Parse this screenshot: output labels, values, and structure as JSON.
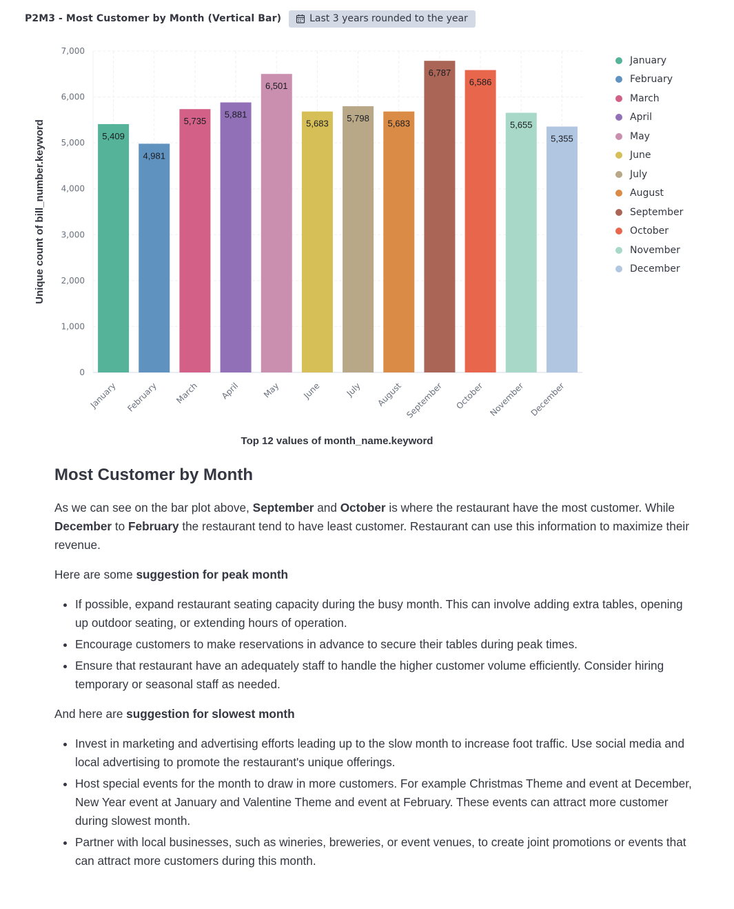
{
  "panel": {
    "title": "P2M3 - Most Customer by Month (Vertical Bar)",
    "time_badge": "Last 3 years rounded to the year"
  },
  "icons": {
    "time_badge_icon": "calendar-icon"
  },
  "chart_data": {
    "type": "bar",
    "categories": [
      "January",
      "February",
      "March",
      "April",
      "May",
      "June",
      "July",
      "August",
      "September",
      "October",
      "November",
      "December"
    ],
    "values": [
      5409,
      4981,
      5735,
      5881,
      6501,
      5683,
      5798,
      5683,
      6787,
      6586,
      5655,
      5355
    ],
    "value_labels": [
      "5,409",
      "4,981",
      "5,735",
      "5,881",
      "6,501",
      "5,683",
      "5,798",
      "5,683",
      "6,787",
      "6,586",
      "5,655",
      "5,355"
    ],
    "colors": [
      "#54b399",
      "#6092c0",
      "#d36086",
      "#9170b8",
      "#ca8eae",
      "#d6bf57",
      "#b9a888",
      "#da8b45",
      "#aa6556",
      "#e7664c",
      "#a8d8c8",
      "#b1c6e0"
    ],
    "xlabel": "Top 12 values of month_name.keyword",
    "ylabel": "Unique count of bill_number.keyword",
    "ylim": [
      0,
      7000
    ],
    "yticks": [
      0,
      1000,
      2000,
      3000,
      4000,
      5000,
      6000,
      7000
    ],
    "ytick_labels": [
      "0",
      "1,000",
      "2,000",
      "3,000",
      "4,000",
      "5,000",
      "6,000",
      "7,000"
    ],
    "grid": true,
    "legend": {
      "placement": "right",
      "entries": [
        "January",
        "February",
        "March",
        "April",
        "May",
        "June",
        "July",
        "August",
        "September",
        "October",
        "November",
        "December"
      ]
    }
  },
  "markdown": {
    "heading": "Most Customer by Month",
    "p1": {
      "t1": "As we can see on the bar plot above, ",
      "b1": "September",
      "t2": " and ",
      "b2": "October",
      "t3": " is where the restaurant have the most customer. While ",
      "b3": "December",
      "t4": " to ",
      "b4": "February",
      "t5": " the restaurant tend to have least customer. Restaurant can use this information to maximize their revenue."
    },
    "p2": {
      "t1": "Here are some ",
      "b1": "suggestion for peak month"
    },
    "peak_list": [
      "If possible, expand restaurant seating capacity during the busy month. This can involve adding extra tables, opening up outdoor seating, or extending hours of operation.",
      "Encourage customers to make reservations in advance to secure their tables during peak times.",
      "Ensure that restaurant have an adequately staff to handle the higher customer volume efficiently. Consider hiring temporary or seasonal staff as needed."
    ],
    "p3": {
      "t1": "And here are ",
      "b1": "suggestion for slowest month"
    },
    "slow_list": [
      "Invest in marketing and advertising efforts leading up to the slow month to increase foot traffic. Use social media and local advertising to promote the restaurant's unique offerings.",
      "Host special events for the month to draw in more customers. For example Christmas Theme and event at December, New Year event at January and Valentine Theme and event at February. These events can attract more customer during slowest month.",
      "Partner with local businesses, such as wineries, breweries, or event venues, to create joint promotions or events that can attract more customers during this month."
    ]
  }
}
